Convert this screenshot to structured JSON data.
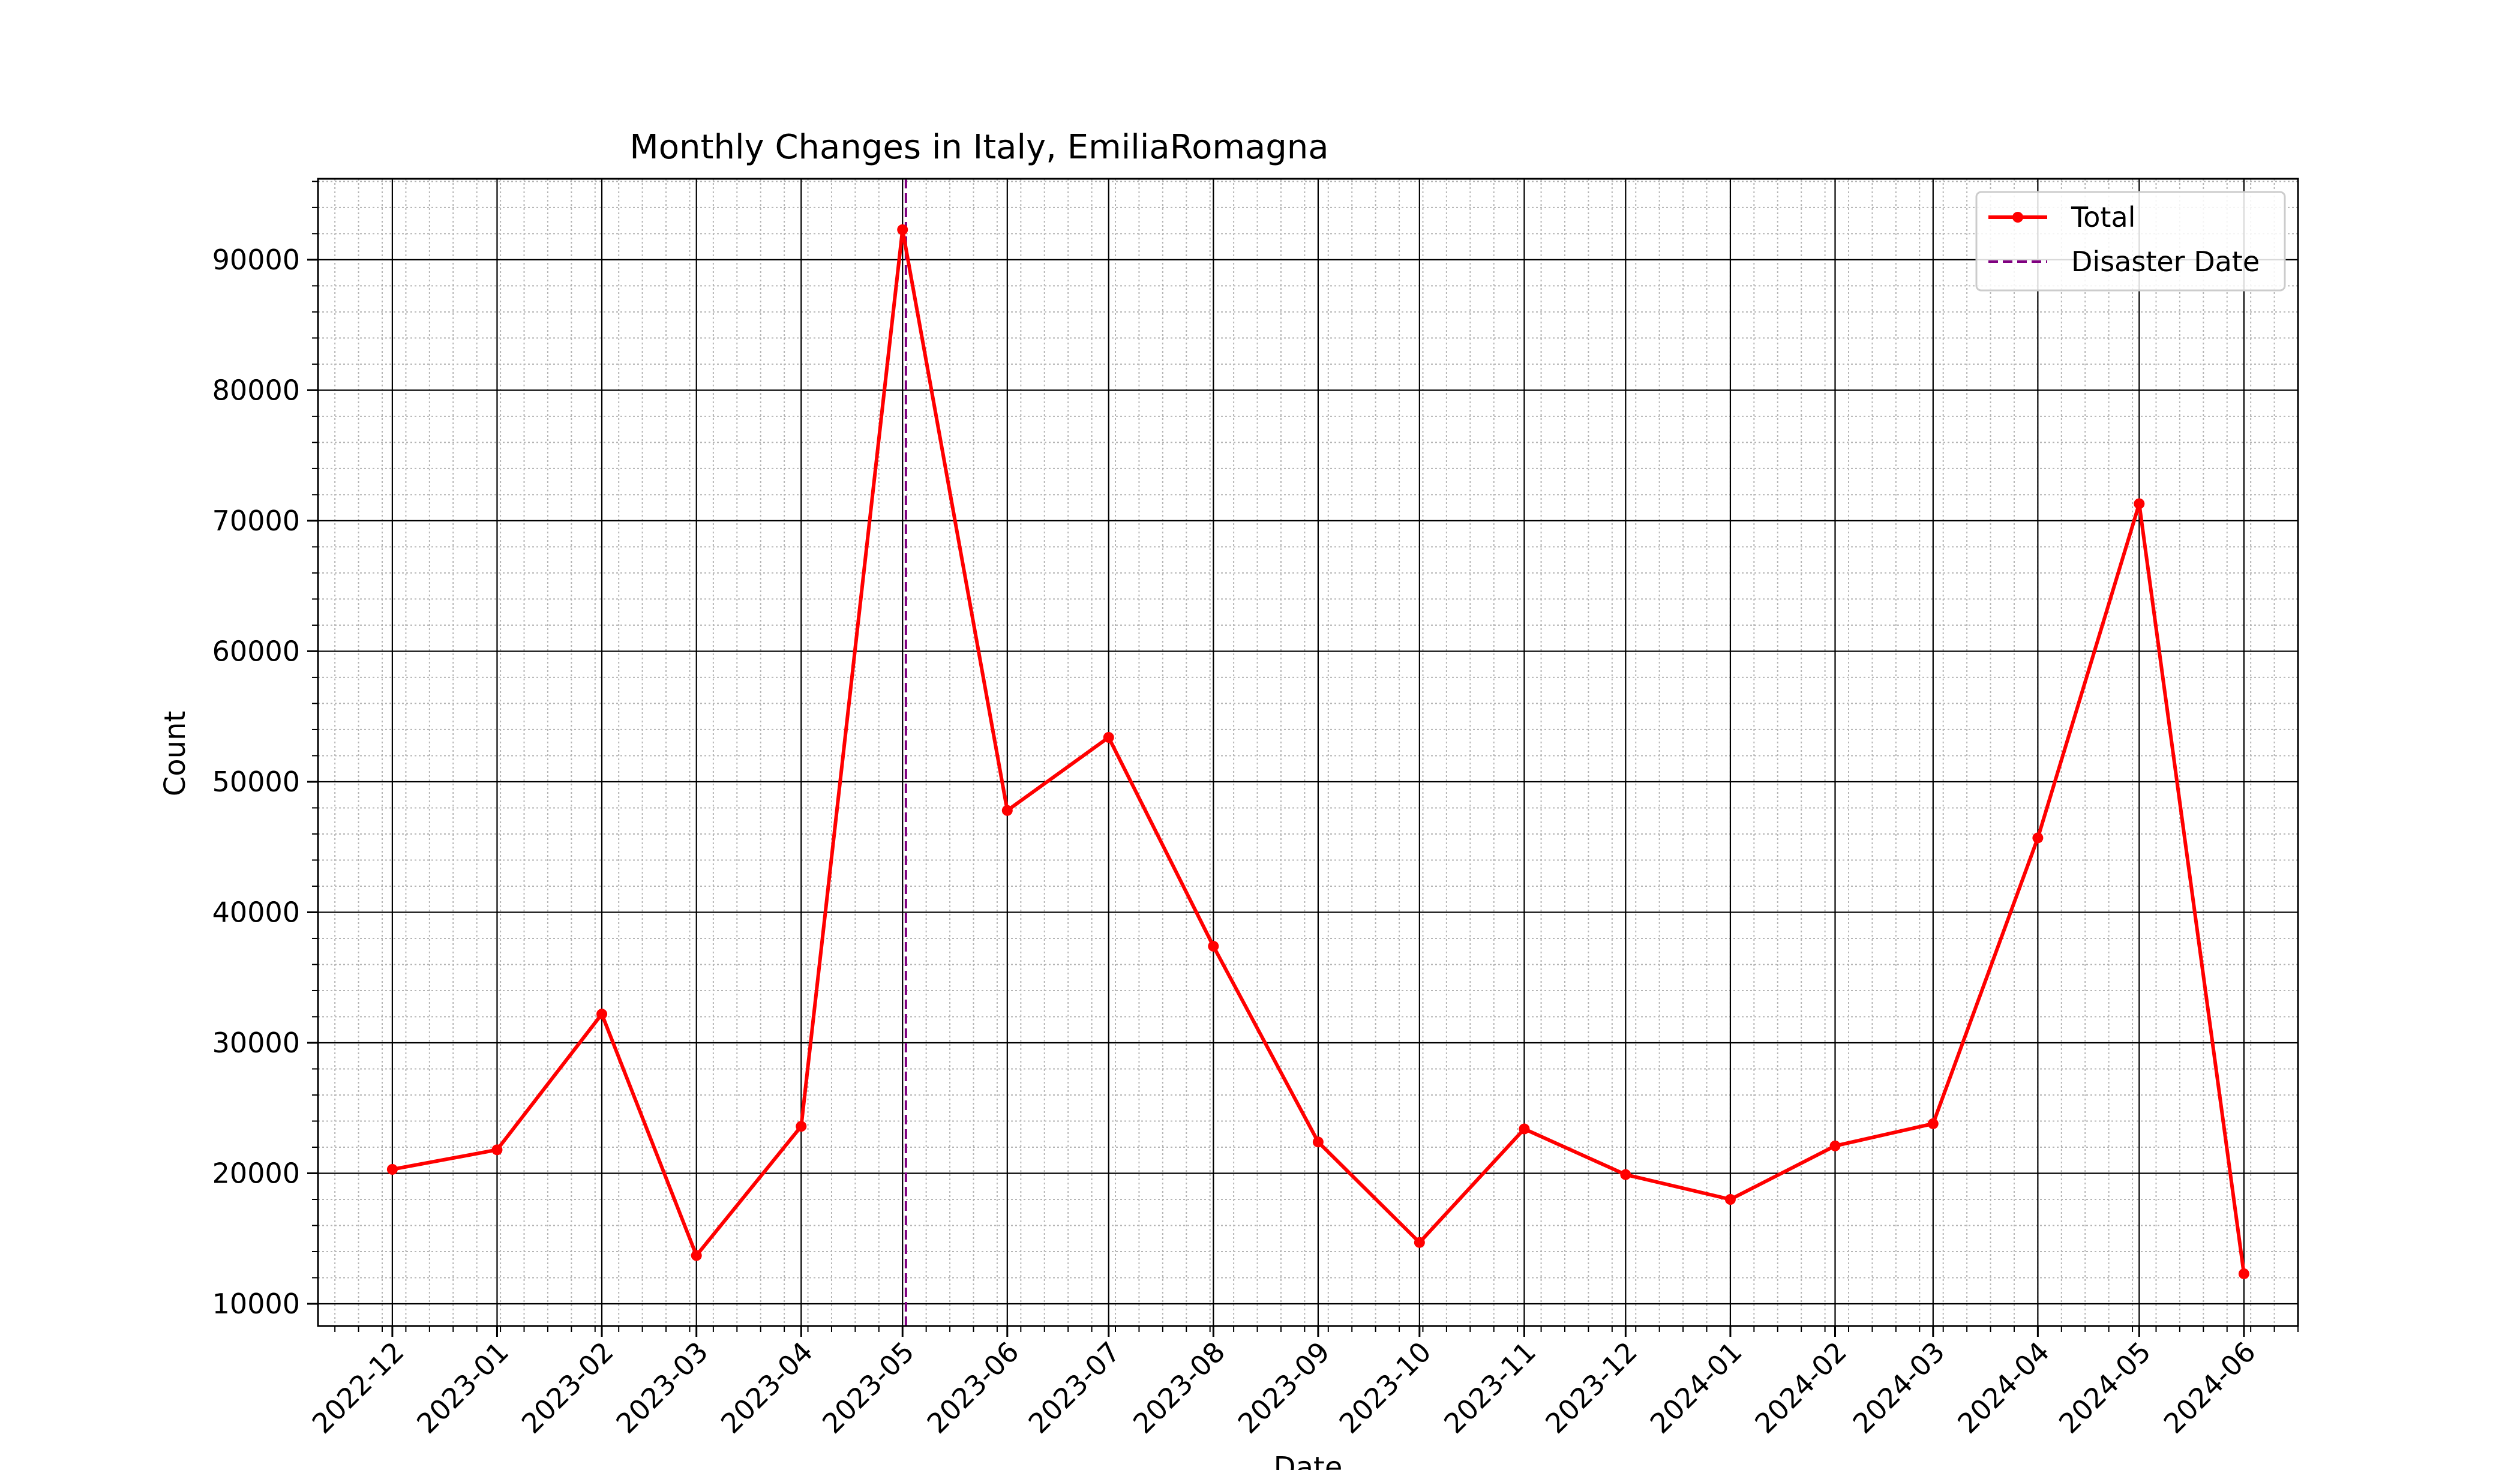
{
  "chart_data": {
    "type": "line",
    "title": "Monthly Changes in Italy, EmiliaRomagna",
    "xlabel": "Date",
    "ylabel": "Count",
    "x_ticks": [
      "2022-12",
      "2023-01",
      "2023-02",
      "2023-03",
      "2023-04",
      "2023-05",
      "2023-06",
      "2023-07",
      "2023-08",
      "2023-09",
      "2023-10",
      "2023-11",
      "2023-12",
      "2024-01",
      "2024-02",
      "2024-03",
      "2024-04",
      "2024-05",
      "2024-06"
    ],
    "y_ticks": [
      10000,
      20000,
      30000,
      40000,
      50000,
      60000,
      70000,
      80000,
      90000
    ],
    "ylim": [
      8300,
      96200
    ],
    "xlim": [
      "2022-11-09",
      "2024-06-17"
    ],
    "grid": "major and minor",
    "legend_position": "top-right",
    "series": [
      {
        "name": "Total",
        "color": "#ff0000",
        "marker": "circle",
        "points": [
          {
            "x": "2022-12-01",
            "y": 20300
          },
          {
            "x": "2023-01-01",
            "y": 21800
          },
          {
            "x": "2023-02-01",
            "y": 32200
          },
          {
            "x": "2023-03-01",
            "y": 13700
          },
          {
            "x": "2023-04-01",
            "y": 23600
          },
          {
            "x": "2023-05-01",
            "y": 92300
          },
          {
            "x": "2023-06-01",
            "y": 47800
          },
          {
            "x": "2023-07-01",
            "y": 53400
          },
          {
            "x": "2023-08-01",
            "y": 37400
          },
          {
            "x": "2023-09-01",
            "y": 22400
          },
          {
            "x": "2023-10-01",
            "y": 14700
          },
          {
            "x": "2023-11-01",
            "y": 23400
          },
          {
            "x": "2023-12-01",
            "y": 19900
          },
          {
            "x": "2024-01-01",
            "y": 18000
          },
          {
            "x": "2024-02-01",
            "y": 22100
          },
          {
            "x": "2024-03-01",
            "y": 23800
          },
          {
            "x": "2024-04-01",
            "y": 45700
          },
          {
            "x": "2024-05-01",
            "y": 71300
          },
          {
            "x": "2024-06-01",
            "y": 12300
          }
        ]
      }
    ],
    "reference_lines": [
      {
        "name": "Disaster Date",
        "x": "2023-05-02",
        "color": "#800080",
        "style": "dashed"
      }
    ]
  }
}
